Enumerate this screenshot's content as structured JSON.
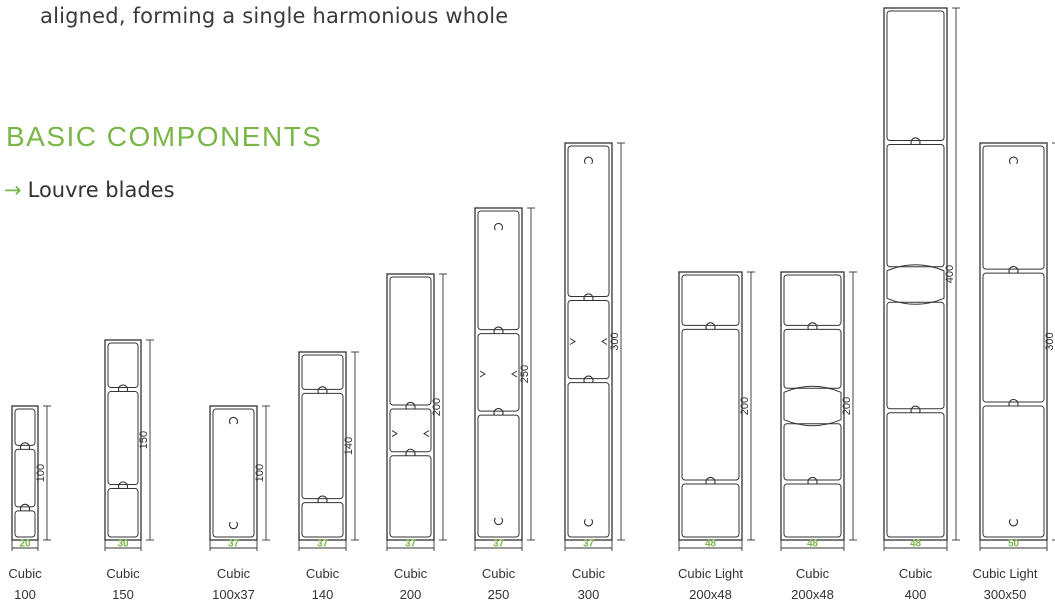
{
  "intro_text": "aligned, forming a single harmonious whole",
  "section_heading": "BASIC COMPONENTS",
  "subsection": {
    "arrow": "→",
    "label": "Louvre blades"
  },
  "colors": {
    "accent": "#7ab648",
    "stroke": "#333333",
    "text": "#333333"
  },
  "blades": [
    {
      "name": "Cubic",
      "size": "100",
      "width": "20",
      "height": "100"
    },
    {
      "name": "Cubic",
      "size": "150",
      "width": "30",
      "height": "150"
    },
    {
      "name": "Cubic",
      "size": "100x37",
      "width": "37",
      "height": "100"
    },
    {
      "name": "Cubic",
      "size": "140",
      "width": "37",
      "height": "140"
    },
    {
      "name": "Cubic",
      "size": "200",
      "width": "37",
      "height": "200"
    },
    {
      "name": "Cubic",
      "size": "250",
      "width": "37",
      "height": "250"
    },
    {
      "name": "Cubic",
      "size": "300",
      "width": "37",
      "height": "300"
    },
    {
      "name": "Cubic Light",
      "size": "200x48",
      "width": "48",
      "height": "200"
    },
    {
      "name": "Cubic",
      "size": "200x48",
      "width": "48",
      "height": "200"
    },
    {
      "name": "Cubic",
      "size": "400",
      "width": "48",
      "height": "400"
    },
    {
      "name": "Cubic Light",
      "size": "300x50",
      "width": "50",
      "height": "300"
    }
  ]
}
